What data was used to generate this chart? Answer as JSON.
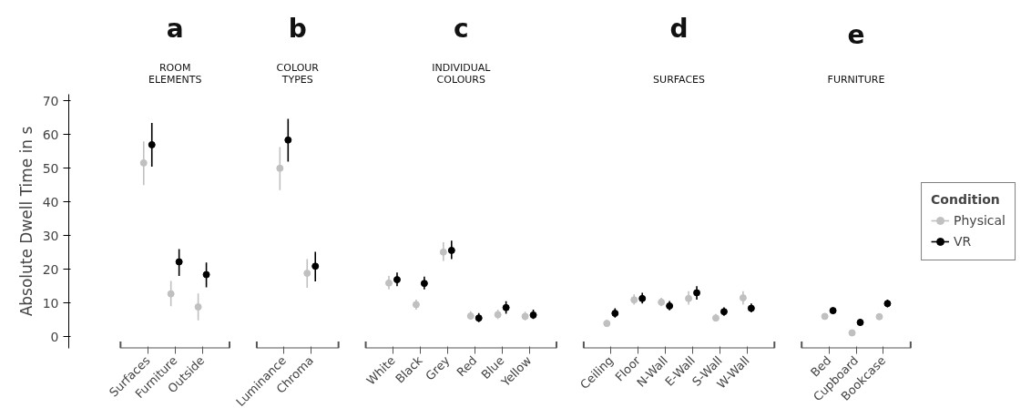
{
  "chart_data": {
    "type": "scatter",
    "ylabel": "Absolute Dwell Time in s",
    "annotations": [
      "a",
      "ROOM\nELEMENTS",
      "b",
      "COLOUR\nTYPES",
      "c",
      "INDIVIDUAL\nCOLOURS",
      "d",
      "SURFACES",
      "e",
      "FURNITURE"
    ],
    "categories": [
      "Surfaces",
      "Furniture",
      "Outside",
      null,
      null,
      "Luminance",
      "Chroma",
      null,
      null,
      "White",
      "Black",
      "Grey",
      "Red",
      "Blue",
      "Yellow",
      null,
      null,
      "Ceiling",
      "Floor",
      "N-Wall",
      "E-Wall",
      "S-Wall",
      "W-Wall",
      null,
      null,
      "Bed",
      "Cupboard",
      "Bookcase"
    ],
    "ylim": [
      -3.5,
      72
    ],
    "yticks": [
      0,
      10,
      20,
      30,
      40,
      50,
      60,
      70
    ],
    "marker": "circle",
    "legend": "right",
    "legend_title": "Condition",
    "series": [
      {
        "name": "Physical",
        "color": "#c0c0c0",
        "values": [
          51.6,
          12.7,
          8.8,
          null,
          null,
          50,
          18.8,
          null,
          null,
          15.9,
          9.5,
          25.1,
          6.1,
          6.5,
          6.0,
          null,
          null,
          3.9,
          10.9,
          10.2,
          11.3,
          5.5,
          11.5,
          null,
          null,
          6.0,
          1.1,
          5.9
        ],
        "errors": [
          [
            45,
            58
          ],
          [
            9,
            16.5
          ],
          [
            4.8,
            12.8
          ],
          null,
          null,
          [
            43.5,
            56.3
          ],
          [
            14.5,
            23
          ],
          null,
          null,
          [
            14,
            18
          ],
          [
            8,
            11
          ],
          [
            22.5,
            28
          ],
          [
            5,
            7.5
          ],
          [
            5.2,
            8
          ],
          [
            4.8,
            7.4
          ],
          null,
          null,
          [
            3,
            5
          ],
          [
            9.5,
            12.5
          ],
          [
            9,
            11.5
          ],
          [
            9.5,
            13.5
          ],
          [
            4.5,
            6.7
          ],
          [
            9.5,
            13.5
          ],
          null,
          null,
          [
            5.5,
            6.5
          ],
          [
            0.7,
            1.5
          ],
          [
            5.4,
            6.4
          ]
        ]
      },
      {
        "name": "VR",
        "color": "#000000",
        "values": [
          57,
          22.2,
          18.4,
          null,
          null,
          58.4,
          20.9,
          null,
          null,
          16.9,
          15.8,
          25.6,
          5.5,
          8.6,
          6.4,
          null,
          null,
          6.9,
          11.3,
          9.1,
          13.0,
          7.4,
          8.4,
          null,
          null,
          7.7,
          4.2,
          9.8
        ],
        "errors": [
          [
            50.5,
            63.5
          ],
          [
            18,
            26
          ],
          [
            14.6,
            22
          ],
          null,
          null,
          [
            52,
            64.7
          ],
          [
            16.4,
            25.2
          ],
          null,
          null,
          [
            15,
            19
          ],
          [
            14,
            17.8
          ],
          [
            23,
            28.5
          ],
          [
            4.3,
            7
          ],
          [
            6.8,
            10.5
          ],
          [
            5.2,
            8
          ],
          null,
          null,
          [
            5.6,
            8.4
          ],
          [
            9.8,
            13
          ],
          [
            7.8,
            10.6
          ],
          [
            11,
            15
          ],
          [
            6.2,
            8.7
          ],
          [
            7.2,
            9.8
          ],
          null,
          null,
          [
            6.8,
            8.6
          ],
          [
            3.2,
            5.2
          ],
          [
            8.7,
            11
          ]
        ]
      }
    ]
  }
}
